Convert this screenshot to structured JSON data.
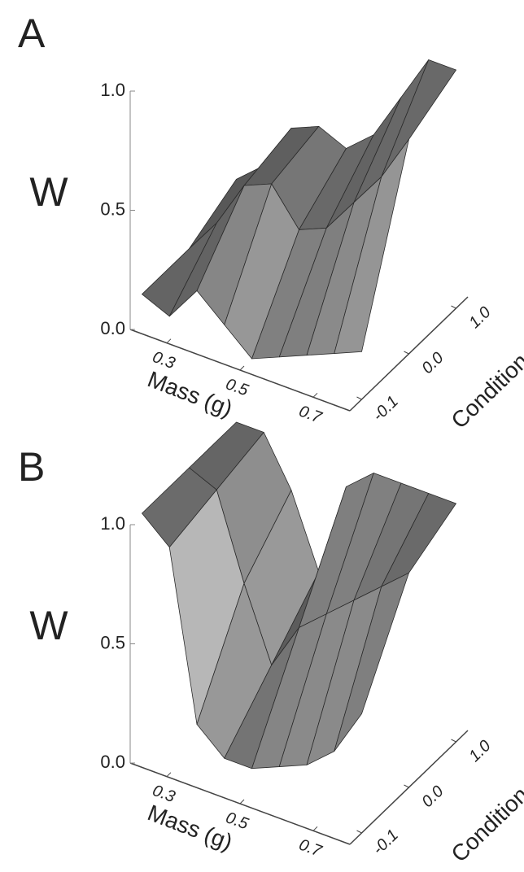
{
  "chart_data": [
    {
      "type": "surface",
      "panel": "A",
      "zlabel": "W",
      "xlabel": "Mass (g)",
      "ylabel": "Condition",
      "zlim": [
        0,
        1
      ],
      "zticks": [
        {
          "value": 0,
          "label": "0.0"
        },
        {
          "value": 0.5,
          "label": "0.5"
        },
        {
          "value": 1,
          "label": "1.0"
        }
      ],
      "xlim": [
        0.2,
        0.8
      ],
      "xticks": [
        0.3,
        0.5,
        0.7
      ],
      "categories": [
        "-0.1",
        "0.0",
        "1.0"
      ],
      "x": [
        0.2,
        0.275,
        0.35,
        0.425,
        0.5,
        0.575,
        0.65,
        0.725,
        0.8
      ],
      "z": [
        [
          0.1,
          0.05,
          0.2,
          0.1,
          0.0,
          0.05,
          0.1,
          0.15,
          0.2
        ],
        [
          0.1,
          0.25,
          0.45,
          0.5,
          0.35,
          0.4,
          0.55,
          0.7,
          0.9
        ],
        [
          0.2,
          0.3,
          0.5,
          0.55,
          0.5,
          0.6,
          0.8,
          1.0,
          1.0
        ]
      ]
    },
    {
      "type": "surface",
      "panel": "B",
      "zlabel": "W",
      "xlabel": "Mass (g)",
      "ylabel": "Condition",
      "zlim": [
        0,
        1
      ],
      "zticks": [
        {
          "value": 0,
          "label": "0.0"
        },
        {
          "value": 0.5,
          "label": "0.5"
        },
        {
          "value": 1,
          "label": "1.0"
        }
      ],
      "xlim": [
        0.2,
        0.8
      ],
      "xticks": [
        0.3,
        0.5,
        0.7
      ],
      "categories": [
        "-0.1",
        "0.0",
        "1.0"
      ],
      "x": [
        0.2,
        0.275,
        0.35,
        0.425,
        0.5,
        0.575,
        0.65,
        0.725,
        0.8
      ],
      "z": [
        [
          1.0,
          0.9,
          0.2,
          0.1,
          0.1,
          0.15,
          0.2,
          0.3,
          0.5
        ],
        [
          1.0,
          0.95,
          0.6,
          0.3,
          0.5,
          0.6,
          0.7,
          0.8,
          0.9
        ],
        [
          1.0,
          1.0,
          0.8,
          0.5,
          0.9,
          1.0,
          1.0,
          1.0,
          1.0
        ]
      ]
    }
  ]
}
